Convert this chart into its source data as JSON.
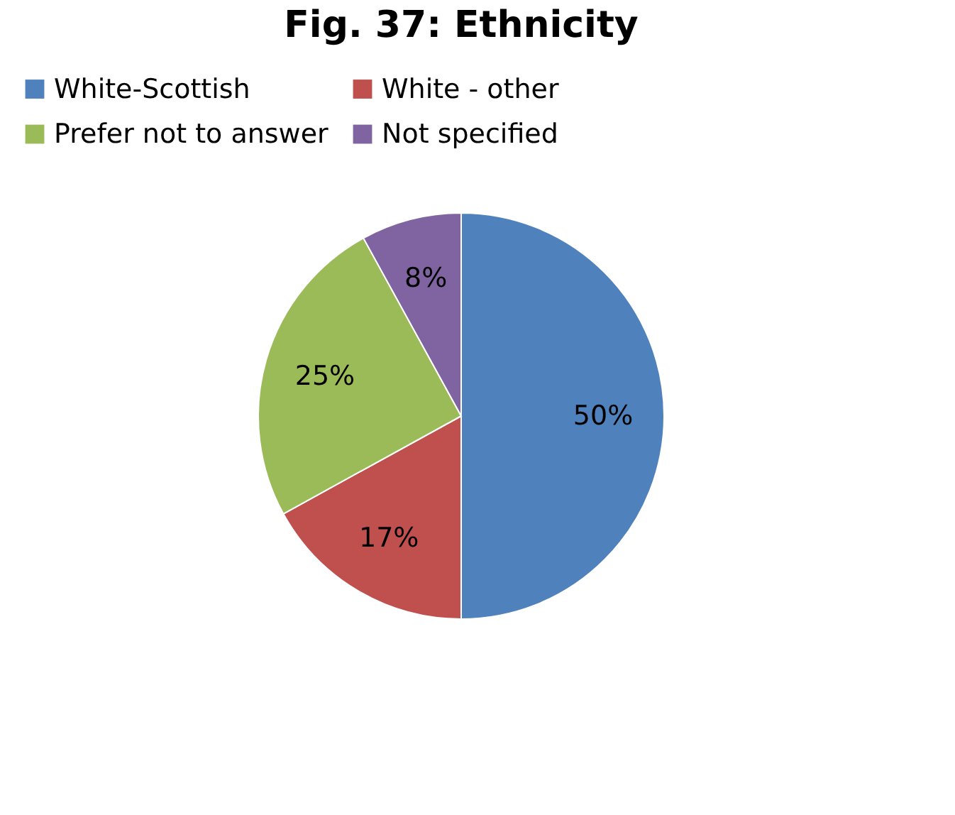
{
  "chart_data": {
    "type": "pie",
    "title": "Fig. 37: Ethnicity",
    "categories": [
      "White-Scottish",
      "White - other",
      "Prefer not to answer",
      "Not specified"
    ],
    "values": [
      50,
      17,
      25,
      8
    ],
    "colors": [
      "#4f81bd",
      "#c0504d",
      "#9bbb59",
      "#8064a2"
    ],
    "value_labels": [
      "50%",
      "17%",
      "25%",
      "8%"
    ],
    "legend": "top"
  }
}
